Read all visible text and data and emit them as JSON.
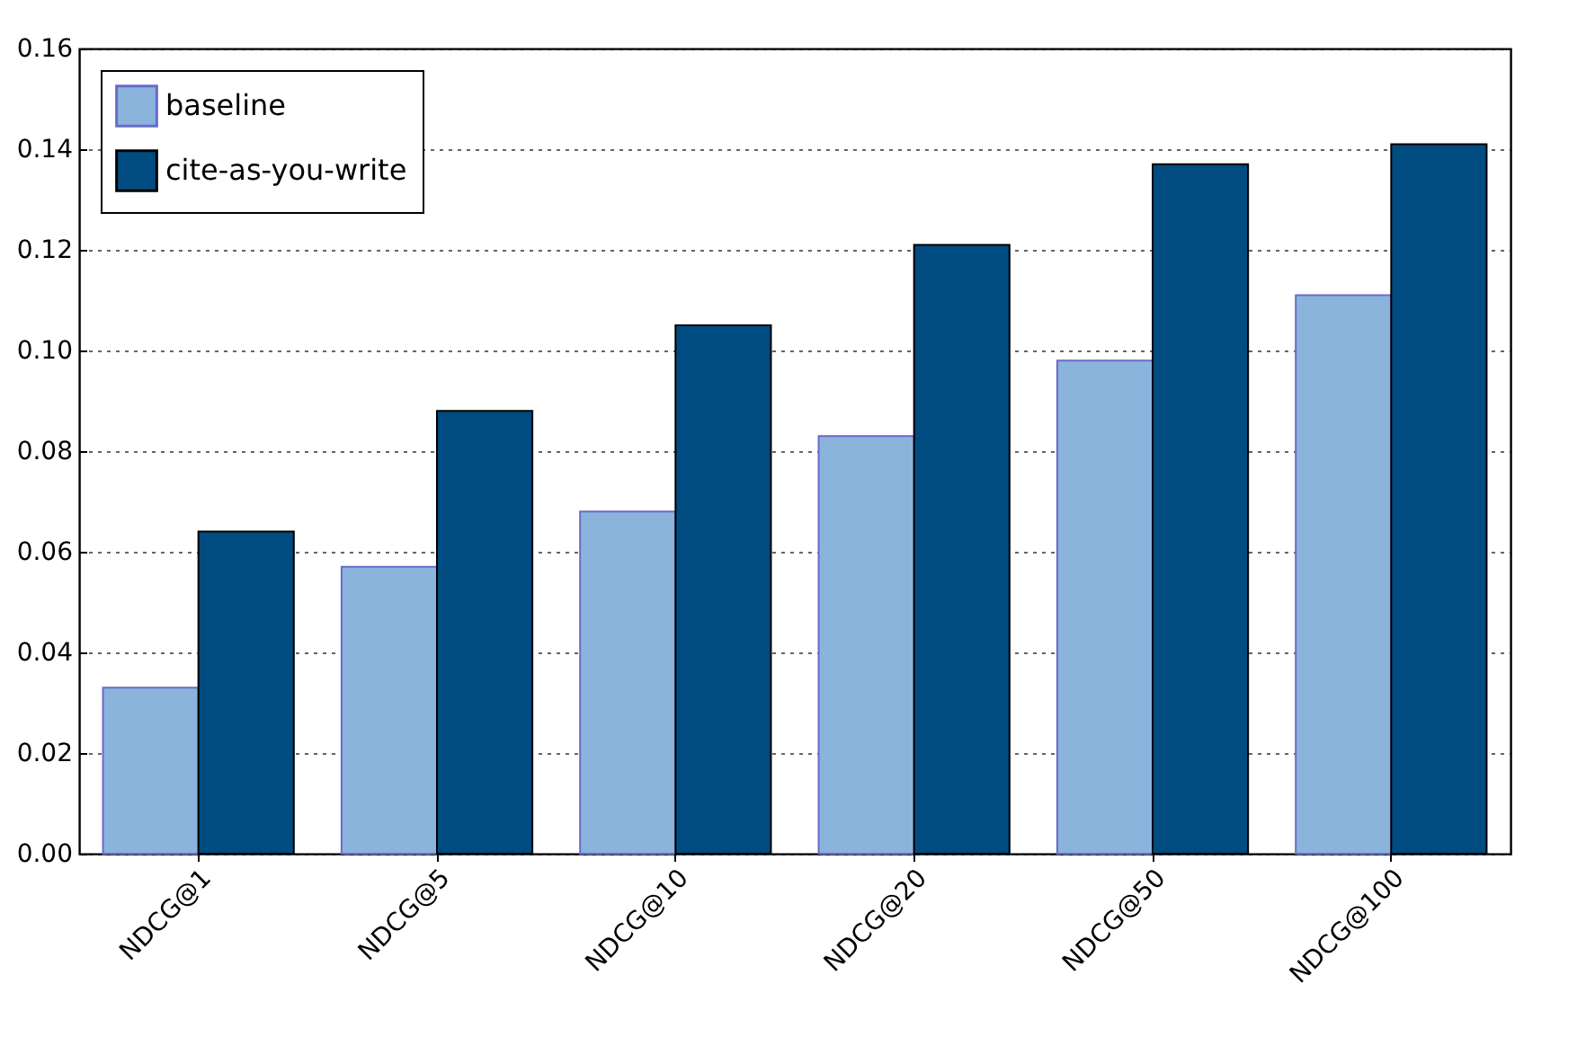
{
  "chart_data": {
    "type": "bar",
    "categories": [
      "NDCG@1",
      "NDCG@5",
      "NDCG@10",
      "NDCG@20",
      "NDCG@50",
      "NDCG@100"
    ],
    "series": [
      {
        "name": "baseline",
        "color": "#8ab4dc",
        "values": [
          0.033,
          0.057,
          0.068,
          0.083,
          0.098,
          0.111
        ]
      },
      {
        "name": "cite-as-you-write",
        "color": "#004c80",
        "values": [
          0.064,
          0.088,
          0.105,
          0.121,
          0.137,
          0.141
        ]
      }
    ],
    "ylim": [
      0,
      0.16
    ],
    "yticks": [
      {
        "value": 0,
        "label": "0.00"
      },
      0.02,
      0.04,
      0.06,
      0.08,
      {
        "value": 0.1,
        "label": "0.10"
      },
      0.12,
      0.14,
      0.16
    ],
    "grid": "y",
    "legend": "top left"
  }
}
